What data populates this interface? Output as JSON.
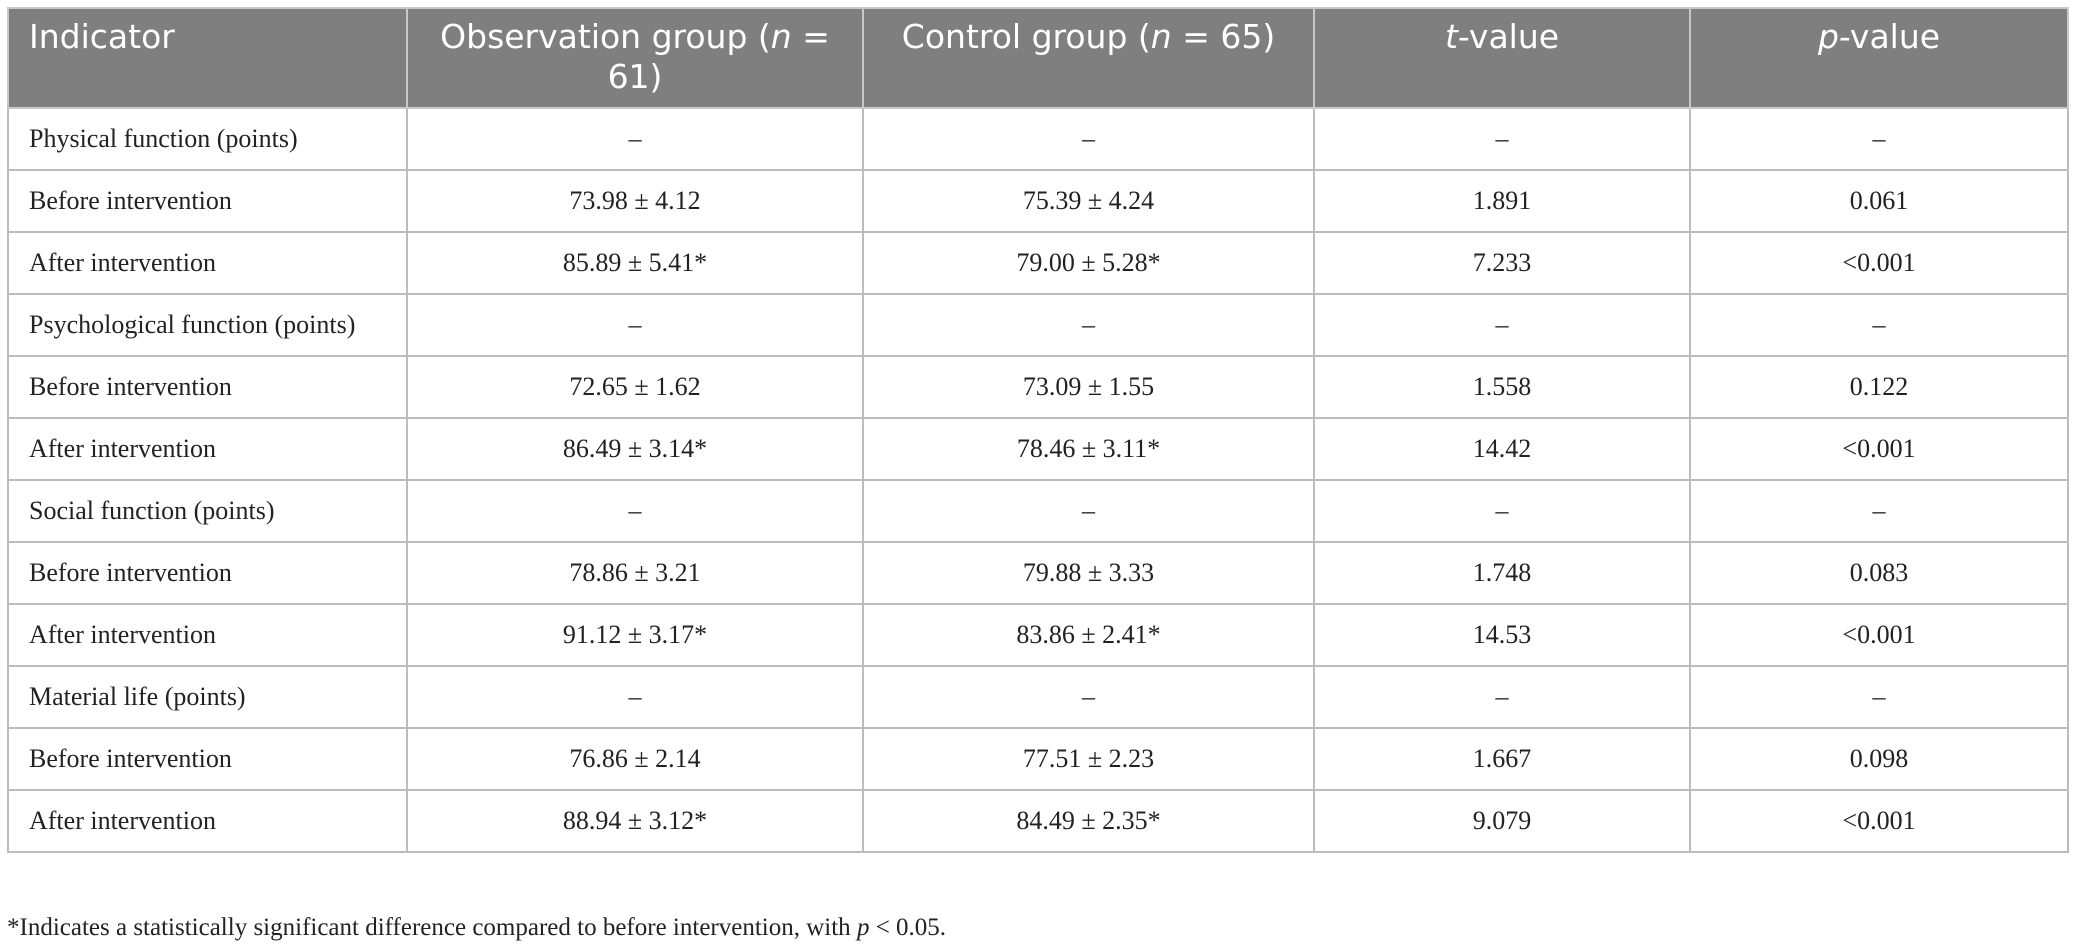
{
  "table": {
    "header": [
      [
        "Indicator"
      ],
      [
        "Observation group (",
        "n",
        " = 61)"
      ],
      [
        "Control group (",
        "n",
        " = 65)"
      ],
      [
        "",
        "t",
        "-value"
      ],
      [
        "",
        "p",
        "-value"
      ]
    ],
    "rows": [
      [
        "Physical function (points)",
        "–",
        "–",
        "–",
        "–"
      ],
      [
        "Before intervention",
        "73.98 ± 4.12",
        "75.39 ± 4.24",
        "1.891",
        "0.061"
      ],
      [
        "After intervention",
        "85.89 ± 5.41*",
        "79.00 ± 5.28*",
        "7.233",
        "<0.001"
      ],
      [
        "Psychological function (points)",
        "–",
        "–",
        "–",
        "–"
      ],
      [
        "Before intervention",
        "72.65 ± 1.62",
        "73.09 ± 1.55",
        "1.558",
        "0.122"
      ],
      [
        "After intervention",
        "86.49 ± 3.14*",
        "78.46 ± 3.11*",
        "14.42",
        "<0.001"
      ],
      [
        "Social function (points)",
        "–",
        "–",
        "–",
        "–"
      ],
      [
        "Before intervention",
        "78.86 ± 3.21",
        "79.88 ± 3.33",
        "1.748",
        "0.083"
      ],
      [
        "After intervention",
        "91.12 ± 3.17*",
        "83.86 ± 2.41*",
        "14.53",
        "<0.001"
      ],
      [
        "Material life (points)",
        "–",
        "–",
        "–",
        "–"
      ],
      [
        "Before intervention",
        "76.86 ± 2.14",
        "77.51 ± 2.23",
        "1.667",
        "0.098"
      ],
      [
        "After intervention",
        "88.94 ± 3.12*",
        "84.49 ± 2.35*",
        "9.079",
        "<0.001"
      ]
    ],
    "footnote": [
      "*Indicates a statistically significant difference compared to before intervention, with ",
      "p",
      " < 0.05."
    ]
  }
}
